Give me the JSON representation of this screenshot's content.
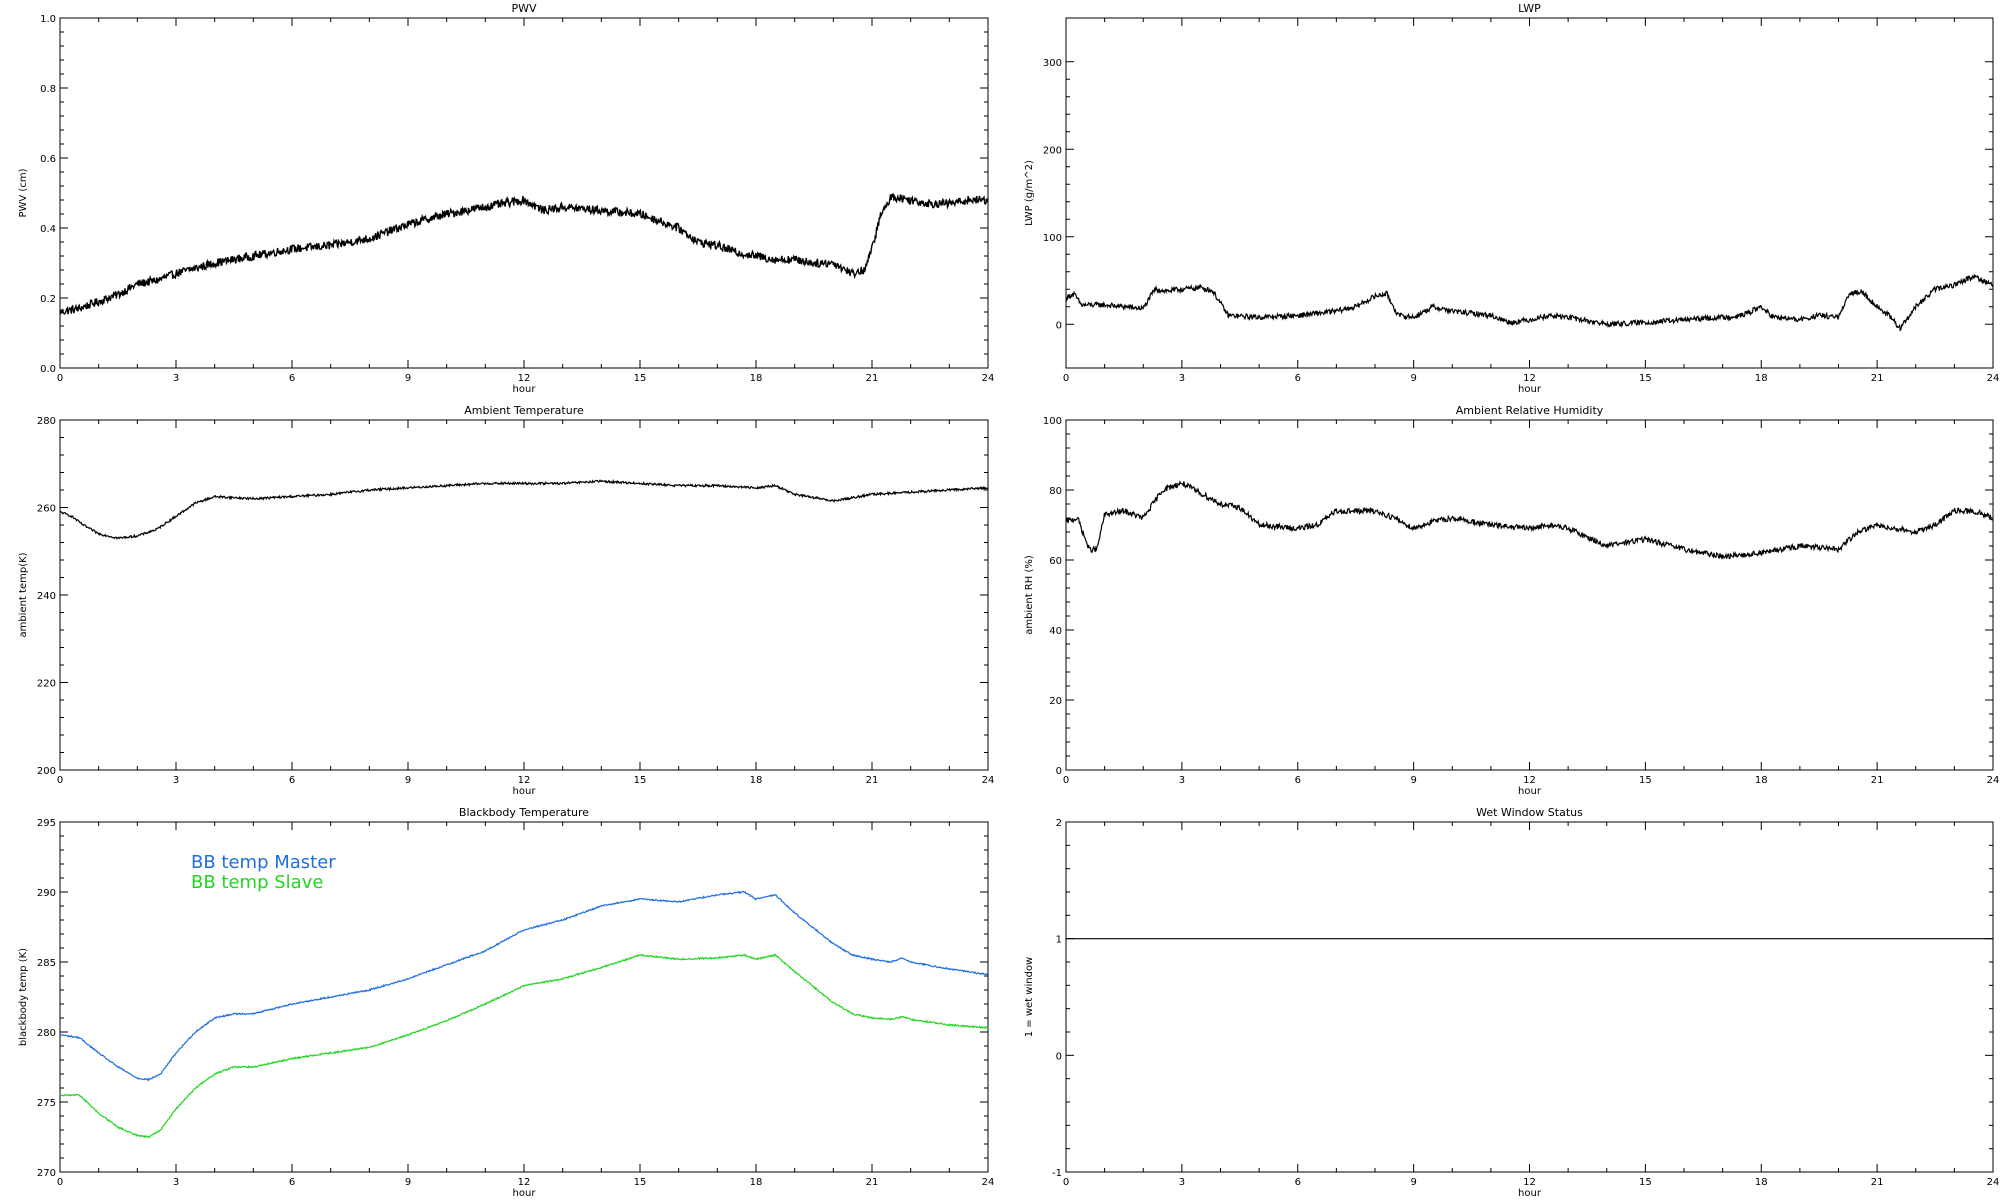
{
  "chart_data": [
    {
      "type": "line",
      "title": "PWV",
      "xlabel": "hour",
      "ylabel": "PWV (cm)",
      "xlim": [
        0,
        24
      ],
      "ylim": [
        0,
        1.0
      ],
      "xticks": [
        "0",
        "3",
        "6",
        "9",
        "12",
        "15",
        "18",
        "21",
        "24"
      ],
      "yticks": [
        "0.0",
        "0.2",
        "0.4",
        "0.6",
        "0.8",
        "1.0"
      ],
      "noise": 0.012,
      "series": [
        {
          "color": "#000000",
          "x": [
            0,
            0.5,
            1,
            1.5,
            2,
            2.5,
            3,
            4,
            5,
            6,
            7,
            8,
            9,
            10,
            11,
            11.5,
            12,
            12.5,
            13,
            14,
            15,
            16,
            16.5,
            17,
            17.5,
            18,
            18.5,
            19,
            19.5,
            20,
            20.5,
            20.8,
            21,
            21.2,
            21.5,
            22,
            22.5,
            23,
            23.5,
            24
          ],
          "y": [
            0.16,
            0.17,
            0.19,
            0.21,
            0.24,
            0.25,
            0.27,
            0.3,
            0.32,
            0.34,
            0.35,
            0.37,
            0.41,
            0.44,
            0.46,
            0.47,
            0.48,
            0.45,
            0.46,
            0.45,
            0.44,
            0.4,
            0.36,
            0.35,
            0.33,
            0.32,
            0.31,
            0.31,
            0.3,
            0.3,
            0.27,
            0.28,
            0.34,
            0.43,
            0.49,
            0.48,
            0.47,
            0.47,
            0.48,
            0.48
          ]
        }
      ]
    },
    {
      "type": "line",
      "title": "LWP",
      "xlabel": "hour",
      "ylabel": "LWP (g/m^2)",
      "xlim": [
        0,
        24
      ],
      "ylim": [
        -50,
        350
      ],
      "xticks": [
        "0",
        "3",
        "6",
        "9",
        "12",
        "15",
        "18",
        "21",
        "24"
      ],
      "yticks": [
        "0",
        "100",
        "200",
        "300"
      ],
      "noise": 3,
      "series": [
        {
          "color": "#000000",
          "x": [
            0,
            0.2,
            0.4,
            1,
            1.5,
            2,
            2.3,
            2.6,
            3,
            3.5,
            3.8,
            4.2,
            5,
            6,
            7,
            7.5,
            8,
            8.3,
            8.6,
            9,
            9.5,
            10,
            11,
            11.5,
            12,
            12.5,
            13,
            14,
            15,
            16,
            17,
            17.5,
            18,
            18.3,
            19,
            19.5,
            20,
            20.3,
            20.6,
            21,
            21.3,
            21.6,
            22,
            22.5,
            23,
            23.5,
            24
          ],
          "y": [
            30,
            35,
            22,
            22,
            20,
            18,
            40,
            38,
            40,
            42,
            38,
            10,
            8,
            10,
            15,
            20,
            32,
            35,
            10,
            8,
            20,
            15,
            10,
            2,
            5,
            10,
            8,
            0,
            2,
            5,
            8,
            10,
            20,
            8,
            5,
            10,
            8,
            35,
            38,
            20,
            10,
            -5,
            20,
            40,
            45,
            55,
            45
          ]
        }
      ]
    },
    {
      "type": "line",
      "title": "Ambient Temperature",
      "xlabel": "hour",
      "ylabel": "ambient temp(K)",
      "xlim": [
        0,
        24
      ],
      "ylim": [
        200,
        280
      ],
      "xticks": [
        "0",
        "3",
        "6",
        "9",
        "12",
        "15",
        "18",
        "21",
        "24"
      ],
      "yticks": [
        "200",
        "220",
        "240",
        "260",
        "280"
      ],
      "noise": 0.25,
      "series": [
        {
          "color": "#000000",
          "x": [
            0,
            0.3,
            0.6,
            1,
            1.5,
            2,
            2.5,
            3,
            3.5,
            4,
            5,
            6,
            7,
            8,
            9,
            10,
            11,
            12,
            13,
            14,
            15,
            16,
            17,
            18,
            18.5,
            19,
            20,
            21,
            22,
            23,
            24
          ],
          "y": [
            259,
            258,
            256,
            254,
            253,
            253.5,
            255,
            258,
            261,
            262.5,
            262,
            262.5,
            263,
            264,
            264.5,
            265,
            265.5,
            265.5,
            265.5,
            266,
            265.5,
            265,
            265,
            264.5,
            265,
            263,
            261.5,
            263,
            263.5,
            264,
            264.5
          ]
        }
      ]
    },
    {
      "type": "line",
      "title": "Ambient Relative Humidity",
      "xlabel": "hour",
      "ylabel": "ambient RH (%)",
      "xlim": [
        0,
        24
      ],
      "ylim": [
        0,
        100
      ],
      "xticks": [
        "0",
        "3",
        "6",
        "9",
        "12",
        "15",
        "18",
        "21",
        "24"
      ],
      "yticks": [
        "0",
        "20",
        "40",
        "60",
        "80",
        "100"
      ],
      "noise": 0.8,
      "series": [
        {
          "color": "#000000",
          "x": [
            0,
            0.3,
            0.6,
            0.8,
            1,
            1.5,
            2,
            2.5,
            3,
            3.5,
            4,
            4.5,
            5,
            6,
            6.5,
            7,
            8,
            8.5,
            9,
            9.5,
            10,
            11,
            12,
            12.5,
            13,
            14,
            14.5,
            15,
            16,
            17,
            18,
            18.5,
            19,
            20,
            20.5,
            21,
            22,
            22.5,
            23,
            23.5,
            24
          ],
          "y": [
            71,
            72,
            63,
            63,
            73,
            74,
            72,
            80,
            82,
            79,
            76,
            75,
            70,
            69,
            70,
            74,
            74,
            72,
            69,
            71,
            72,
            70,
            69,
            70,
            69,
            64,
            65,
            66,
            63,
            61,
            62,
            63,
            64,
            63,
            68,
            70,
            68,
            70,
            74,
            74,
            72
          ]
        }
      ]
    },
    {
      "type": "line",
      "title": "Blackbody Temperature",
      "xlabel": "hour",
      "ylabel": "blackbody temp (K)",
      "xlim": [
        0,
        24
      ],
      "ylim": [
        270,
        295
      ],
      "xticks": [
        "0",
        "3",
        "6",
        "9",
        "12",
        "15",
        "18",
        "21",
        "24"
      ],
      "yticks": [
        "270",
        "275",
        "280",
        "285",
        "290",
        "295"
      ],
      "noise": 0.05,
      "legend": "top-left",
      "series": [
        {
          "name": "BB temp Master",
          "color": "#1f6fe0",
          "x": [
            0,
            0.5,
            1,
            1.5,
            2,
            2.3,
            2.6,
            3,
            3.5,
            4,
            4.5,
            5,
            6,
            7,
            8,
            9,
            10,
            11,
            12,
            13,
            14,
            15,
            16,
            17,
            17.7,
            18,
            18.5,
            19,
            20,
            20.5,
            21,
            21.5,
            21.8,
            22,
            23,
            24
          ],
          "y": [
            279.8,
            279.6,
            278.5,
            277.5,
            276.7,
            276.6,
            277,
            278.5,
            280,
            281,
            281.3,
            281.3,
            282,
            282.5,
            283,
            283.8,
            284.8,
            285.8,
            287.3,
            288,
            289,
            289.5,
            289.3,
            289.8,
            290,
            289.5,
            289.8,
            288.5,
            286.3,
            285.5,
            285.2,
            285.0,
            285.3,
            285.0,
            284.5,
            284.1
          ]
        },
        {
          "name": "BB temp Slave",
          "color": "#21d621",
          "x": [
            0,
            0.5,
            1,
            1.5,
            2,
            2.3,
            2.6,
            3,
            3.5,
            4,
            4.5,
            5,
            6,
            7,
            8,
            9,
            10,
            11,
            12,
            13,
            14,
            15,
            16,
            17,
            17.7,
            18,
            18.5,
            19,
            20,
            20.5,
            21,
            21.5,
            21.8,
            22,
            23,
            24
          ],
          "y": [
            275.5,
            275.5,
            274.2,
            273.2,
            272.6,
            272.5,
            273,
            274.5,
            276,
            277,
            277.5,
            277.5,
            278.1,
            278.5,
            278.9,
            279.8,
            280.8,
            282,
            283.3,
            283.8,
            284.6,
            285.5,
            285.2,
            285.3,
            285.5,
            285.2,
            285.5,
            284.3,
            282.1,
            281.3,
            281.0,
            280.9,
            281.1,
            280.9,
            280.5,
            280.3
          ]
        }
      ]
    },
    {
      "type": "line",
      "title": "Wet Window Status",
      "xlabel": "hour",
      "ylabel": "1 = wet window",
      "xlim": [
        0,
        24
      ],
      "ylim": [
        -1,
        2
      ],
      "xticks": [
        "0",
        "3",
        "6",
        "9",
        "12",
        "15",
        "18",
        "21",
        "24"
      ],
      "yticks": [
        "-1",
        "0",
        "1",
        "2"
      ],
      "noise": 0,
      "series": [
        {
          "color": "#000000",
          "x": [
            0,
            24
          ],
          "y": [
            1,
            1
          ]
        }
      ]
    }
  ]
}
